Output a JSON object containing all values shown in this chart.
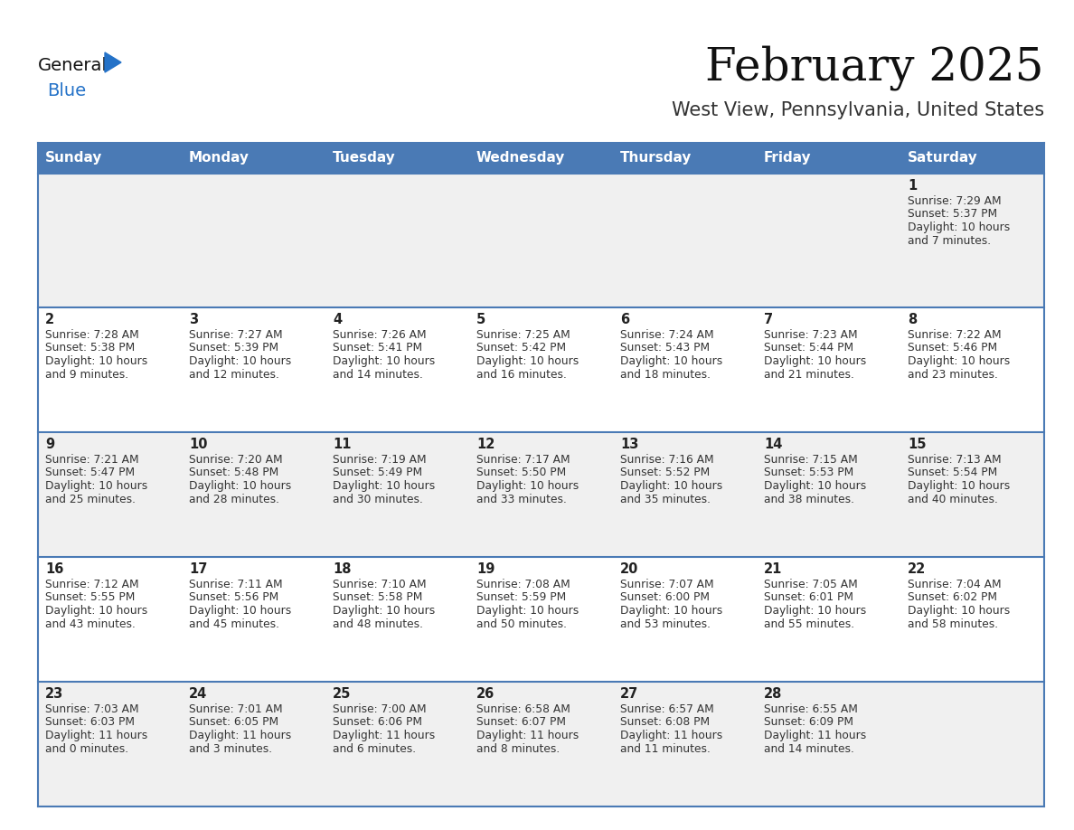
{
  "title": "February 2025",
  "subtitle": "West View, Pennsylvania, United States",
  "header_bg_color": "#4a7ab5",
  "header_text_color": "#FFFFFF",
  "row0_bg": "#F0F0F0",
  "odd_row_bg": "#FFFFFF",
  "even_row_bg": "#F0F0F0",
  "border_color": "#4a7ab5",
  "title_color": "#111111",
  "subtitle_color": "#333333",
  "day_num_color": "#222222",
  "cell_text_color": "#333333",
  "logo_general_color": "#111111",
  "logo_blue_color": "#2472C8",
  "day_headers": [
    "Sunday",
    "Monday",
    "Tuesday",
    "Wednesday",
    "Thursday",
    "Friday",
    "Saturday"
  ],
  "days": [
    {
      "date": 1,
      "col": 6,
      "row": 0,
      "sunrise": "7:29 AM",
      "sunset": "5:37 PM",
      "daylight_hours": 10,
      "daylight_minutes": 7
    },
    {
      "date": 2,
      "col": 0,
      "row": 1,
      "sunrise": "7:28 AM",
      "sunset": "5:38 PM",
      "daylight_hours": 10,
      "daylight_minutes": 9
    },
    {
      "date": 3,
      "col": 1,
      "row": 1,
      "sunrise": "7:27 AM",
      "sunset": "5:39 PM",
      "daylight_hours": 10,
      "daylight_minutes": 12
    },
    {
      "date": 4,
      "col": 2,
      "row": 1,
      "sunrise": "7:26 AM",
      "sunset": "5:41 PM",
      "daylight_hours": 10,
      "daylight_minutes": 14
    },
    {
      "date": 5,
      "col": 3,
      "row": 1,
      "sunrise": "7:25 AM",
      "sunset": "5:42 PM",
      "daylight_hours": 10,
      "daylight_minutes": 16
    },
    {
      "date": 6,
      "col": 4,
      "row": 1,
      "sunrise": "7:24 AM",
      "sunset": "5:43 PM",
      "daylight_hours": 10,
      "daylight_minutes": 18
    },
    {
      "date": 7,
      "col": 5,
      "row": 1,
      "sunrise": "7:23 AM",
      "sunset": "5:44 PM",
      "daylight_hours": 10,
      "daylight_minutes": 21
    },
    {
      "date": 8,
      "col": 6,
      "row": 1,
      "sunrise": "7:22 AM",
      "sunset": "5:46 PM",
      "daylight_hours": 10,
      "daylight_minutes": 23
    },
    {
      "date": 9,
      "col": 0,
      "row": 2,
      "sunrise": "7:21 AM",
      "sunset": "5:47 PM",
      "daylight_hours": 10,
      "daylight_minutes": 25
    },
    {
      "date": 10,
      "col": 1,
      "row": 2,
      "sunrise": "7:20 AM",
      "sunset": "5:48 PM",
      "daylight_hours": 10,
      "daylight_minutes": 28
    },
    {
      "date": 11,
      "col": 2,
      "row": 2,
      "sunrise": "7:19 AM",
      "sunset": "5:49 PM",
      "daylight_hours": 10,
      "daylight_minutes": 30
    },
    {
      "date": 12,
      "col": 3,
      "row": 2,
      "sunrise": "7:17 AM",
      "sunset": "5:50 PM",
      "daylight_hours": 10,
      "daylight_minutes": 33
    },
    {
      "date": 13,
      "col": 4,
      "row": 2,
      "sunrise": "7:16 AM",
      "sunset": "5:52 PM",
      "daylight_hours": 10,
      "daylight_minutes": 35
    },
    {
      "date": 14,
      "col": 5,
      "row": 2,
      "sunrise": "7:15 AM",
      "sunset": "5:53 PM",
      "daylight_hours": 10,
      "daylight_minutes": 38
    },
    {
      "date": 15,
      "col": 6,
      "row": 2,
      "sunrise": "7:13 AM",
      "sunset": "5:54 PM",
      "daylight_hours": 10,
      "daylight_minutes": 40
    },
    {
      "date": 16,
      "col": 0,
      "row": 3,
      "sunrise": "7:12 AM",
      "sunset": "5:55 PM",
      "daylight_hours": 10,
      "daylight_minutes": 43
    },
    {
      "date": 17,
      "col": 1,
      "row": 3,
      "sunrise": "7:11 AM",
      "sunset": "5:56 PM",
      "daylight_hours": 10,
      "daylight_minutes": 45
    },
    {
      "date": 18,
      "col": 2,
      "row": 3,
      "sunrise": "7:10 AM",
      "sunset": "5:58 PM",
      "daylight_hours": 10,
      "daylight_minutes": 48
    },
    {
      "date": 19,
      "col": 3,
      "row": 3,
      "sunrise": "7:08 AM",
      "sunset": "5:59 PM",
      "daylight_hours": 10,
      "daylight_minutes": 50
    },
    {
      "date": 20,
      "col": 4,
      "row": 3,
      "sunrise": "7:07 AM",
      "sunset": "6:00 PM",
      "daylight_hours": 10,
      "daylight_minutes": 53
    },
    {
      "date": 21,
      "col": 5,
      "row": 3,
      "sunrise": "7:05 AM",
      "sunset": "6:01 PM",
      "daylight_hours": 10,
      "daylight_minutes": 55
    },
    {
      "date": 22,
      "col": 6,
      "row": 3,
      "sunrise": "7:04 AM",
      "sunset": "6:02 PM",
      "daylight_hours": 10,
      "daylight_minutes": 58
    },
    {
      "date": 23,
      "col": 0,
      "row": 4,
      "sunrise": "7:03 AM",
      "sunset": "6:03 PM",
      "daylight_hours": 11,
      "daylight_minutes": 0
    },
    {
      "date": 24,
      "col": 1,
      "row": 4,
      "sunrise": "7:01 AM",
      "sunset": "6:05 PM",
      "daylight_hours": 11,
      "daylight_minutes": 3
    },
    {
      "date": 25,
      "col": 2,
      "row": 4,
      "sunrise": "7:00 AM",
      "sunset": "6:06 PM",
      "daylight_hours": 11,
      "daylight_minutes": 6
    },
    {
      "date": 26,
      "col": 3,
      "row": 4,
      "sunrise": "6:58 AM",
      "sunset": "6:07 PM",
      "daylight_hours": 11,
      "daylight_minutes": 8
    },
    {
      "date": 27,
      "col": 4,
      "row": 4,
      "sunrise": "6:57 AM",
      "sunset": "6:08 PM",
      "daylight_hours": 11,
      "daylight_minutes": 11
    },
    {
      "date": 28,
      "col": 5,
      "row": 4,
      "sunrise": "6:55 AM",
      "sunset": "6:09 PM",
      "daylight_hours": 11,
      "daylight_minutes": 14
    }
  ]
}
